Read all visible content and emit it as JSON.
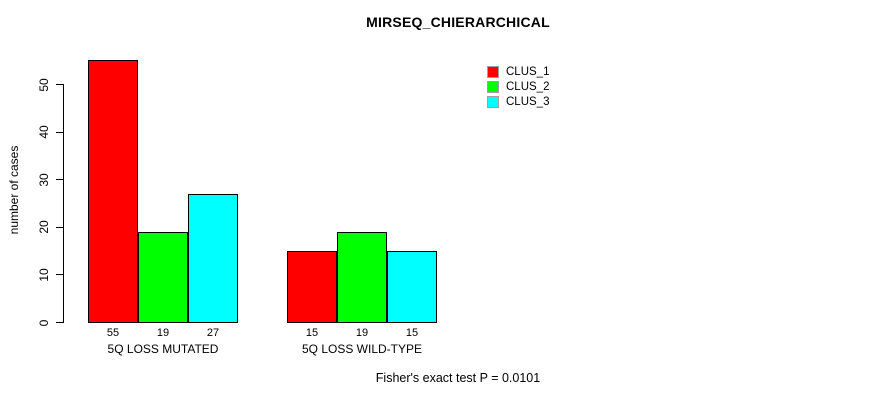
{
  "chart_data": {
    "type": "bar",
    "title": "MIRSEQ_CHIERARCHICAL",
    "xlabel": "",
    "ylabel": "number of cases",
    "ylim": [
      0,
      55
    ],
    "yticks": [
      0,
      10,
      20,
      30,
      40,
      50
    ],
    "grid": false,
    "legend_position": "top-right",
    "categories": [
      "5Q LOSS MUTATED",
      "5Q LOSS WILD-TYPE"
    ],
    "series": [
      {
        "name": "CLUS_1",
        "color": "#ff0000",
        "values": [
          55,
          15
        ]
      },
      {
        "name": "CLUS_2",
        "color": "#00ff00",
        "values": [
          19,
          19
        ]
      },
      {
        "name": "CLUS_3",
        "color": "#00ffff",
        "values": [
          27,
          15
        ]
      }
    ],
    "bar_value_labels": [
      [
        55,
        19,
        27
      ],
      [
        15,
        19,
        15
      ]
    ],
    "annotation": "Fisher's exact test P = 0.0101"
  }
}
